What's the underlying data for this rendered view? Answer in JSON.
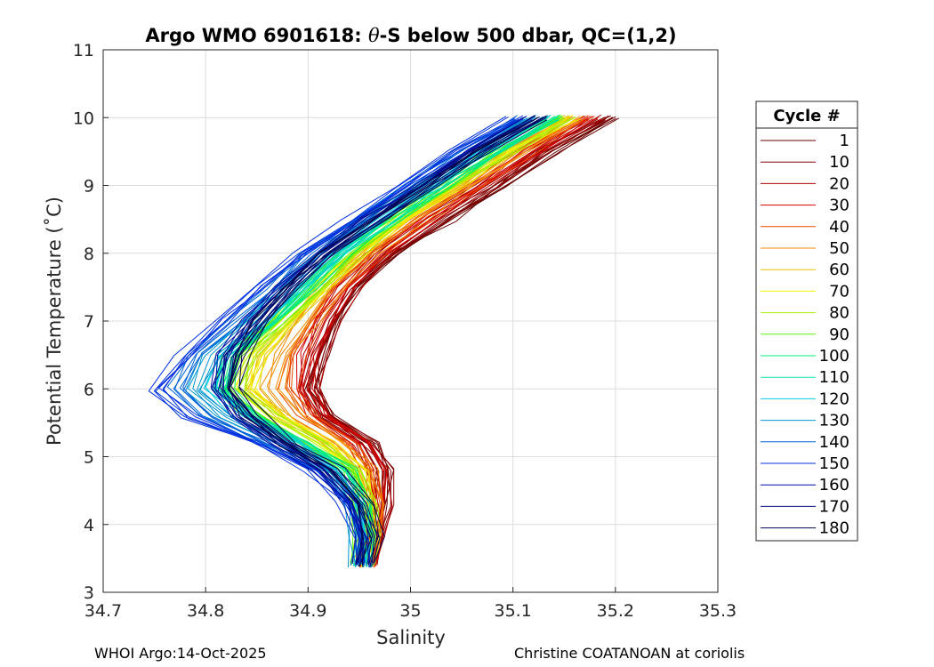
{
  "chart_data": {
    "type": "line",
    "title": "Argo WMO 6901618: θ-S below 500 dbar,  QC=(1,2)",
    "title_prefix": "Argo WMO 6901618: ",
    "title_theta": "θ",
    "title_suffix": "-S below 500 dbar,  QC=(1,2)",
    "xlabel": "Salinity",
    "ylabel": "Potential Temperature (˚C)",
    "xlim": [
      34.7,
      35.3
    ],
    "ylim": [
      3,
      11
    ],
    "xticks": [
      "34.7",
      "34.8",
      "34.9",
      "35",
      "35.1",
      "35.2",
      "35.3"
    ],
    "yticks": [
      "3",
      "4",
      "5",
      "6",
      "7",
      "8",
      "9",
      "10",
      "11"
    ],
    "grid": true,
    "legend_title": "Cycle #",
    "legend_placement": "right",
    "legend": [
      {
        "label": "1",
        "color": "#6b0000"
      },
      {
        "label": "10",
        "color": "#8b0000"
      },
      {
        "label": "20",
        "color": "#b00000"
      },
      {
        "label": "30",
        "color": "#d40000"
      },
      {
        "label": "40",
        "color": "#e84a00"
      },
      {
        "label": "50",
        "color": "#f58a00"
      },
      {
        "label": "60",
        "color": "#e8c200"
      },
      {
        "label": "70",
        "color": "#f2f200"
      },
      {
        "label": "80",
        "color": "#a8f000"
      },
      {
        "label": "90",
        "color": "#5cf000"
      },
      {
        "label": "100",
        "color": "#00f070"
      },
      {
        "label": "110",
        "color": "#00e0b0"
      },
      {
        "label": "120",
        "color": "#00c8e0"
      },
      {
        "label": "130",
        "color": "#0096d0"
      },
      {
        "label": "140",
        "color": "#0064d8"
      },
      {
        "label": "150",
        "color": "#0030e0"
      },
      {
        "label": "160",
        "color": "#0010a0"
      },
      {
        "label": "170",
        "color": "#000a78"
      },
      {
        "label": "180",
        "color": "#00064f"
      }
    ],
    "series_template": {
      "theta": [
        3.4,
        3.8,
        4.3,
        4.8,
        5.2,
        5.6,
        6.0,
        6.5,
        7.0,
        7.5,
        8.0,
        8.5,
        9.0,
        9.5,
        10.0
      ],
      "salinity_by_cycle": [
        {
          "cycle": 1,
          "salinity": [
            34.96,
            34.97,
            34.975,
            34.98,
            34.965,
            34.92,
            34.905,
            34.915,
            34.93,
            34.95,
            34.99,
            35.04,
            35.09,
            35.14,
            35.2
          ]
        },
        {
          "cycle": 10,
          "salinity": [
            34.96,
            34.968,
            34.975,
            34.975,
            34.96,
            34.92,
            34.905,
            34.91,
            34.925,
            34.945,
            34.98,
            35.03,
            35.08,
            35.13,
            35.19
          ]
        },
        {
          "cycle": 20,
          "salinity": [
            34.96,
            34.968,
            34.972,
            34.97,
            34.955,
            34.915,
            34.9,
            34.905,
            34.92,
            34.94,
            34.975,
            35.02,
            35.07,
            35.12,
            35.18
          ]
        },
        {
          "cycle": 30,
          "salinity": [
            34.958,
            34.966,
            34.97,
            34.968,
            34.95,
            34.91,
            34.895,
            34.9,
            34.915,
            34.935,
            34.97,
            35.015,
            35.065,
            35.115,
            35.175
          ]
        },
        {
          "cycle": 40,
          "salinity": [
            34.955,
            34.965,
            34.968,
            34.962,
            34.94,
            34.9,
            34.88,
            34.885,
            34.905,
            34.93,
            34.965,
            35.01,
            35.06,
            35.11,
            35.17
          ]
        },
        {
          "cycle": 50,
          "salinity": [
            34.955,
            34.963,
            34.965,
            34.958,
            34.93,
            34.89,
            34.865,
            34.875,
            34.9,
            34.925,
            34.96,
            35.005,
            35.055,
            35.105,
            35.165
          ]
        },
        {
          "cycle": 60,
          "salinity": [
            34.955,
            34.962,
            34.963,
            34.955,
            34.925,
            34.88,
            34.85,
            34.86,
            34.89,
            34.92,
            34.955,
            35.0,
            35.05,
            35.1,
            35.16
          ]
        },
        {
          "cycle": 70,
          "salinity": [
            34.953,
            34.96,
            34.96,
            34.95,
            34.92,
            34.87,
            34.84,
            34.85,
            34.88,
            34.915,
            34.95,
            34.995,
            35.045,
            35.095,
            35.155
          ]
        },
        {
          "cycle": 80,
          "salinity": [
            34.953,
            34.958,
            34.958,
            34.945,
            34.91,
            34.86,
            34.83,
            34.84,
            34.875,
            34.91,
            34.945,
            34.99,
            35.04,
            35.09,
            35.15
          ]
        },
        {
          "cycle": 90,
          "salinity": [
            34.952,
            34.956,
            34.955,
            34.94,
            34.9,
            34.85,
            34.82,
            34.83,
            34.87,
            34.905,
            34.94,
            34.985,
            35.035,
            35.085,
            35.145
          ]
        },
        {
          "cycle": 100,
          "salinity": [
            34.952,
            34.955,
            34.952,
            34.935,
            34.895,
            34.845,
            34.815,
            34.825,
            34.865,
            34.9,
            34.935,
            34.98,
            35.03,
            35.08,
            35.14
          ]
        },
        {
          "cycle": 110,
          "salinity": [
            34.95,
            34.953,
            34.95,
            34.93,
            34.89,
            34.84,
            34.81,
            34.82,
            34.86,
            34.895,
            34.93,
            34.975,
            35.025,
            35.075,
            35.135
          ]
        },
        {
          "cycle": 120,
          "salinity": [
            34.95,
            34.952,
            34.948,
            34.925,
            34.885,
            34.835,
            34.805,
            34.815,
            34.855,
            34.89,
            34.925,
            34.97,
            35.02,
            35.07,
            35.13
          ]
        },
        {
          "cycle": 130,
          "salinity": [
            34.95,
            34.95,
            34.945,
            34.92,
            34.875,
            34.82,
            34.79,
            34.805,
            34.845,
            34.88,
            34.915,
            34.96,
            35.01,
            35.06,
            35.12
          ]
        },
        {
          "cycle": 140,
          "salinity": [
            34.95,
            34.95,
            34.94,
            34.91,
            34.86,
            34.8,
            34.77,
            34.79,
            34.83,
            34.865,
            34.9,
            34.95,
            35.0,
            35.05,
            35.11
          ]
        },
        {
          "cycle": 150,
          "salinity": [
            34.95,
            34.948,
            34.935,
            34.9,
            34.845,
            34.78,
            34.75,
            34.775,
            34.815,
            34.85,
            34.89,
            34.94,
            34.99,
            35.04,
            35.1
          ]
        },
        {
          "cycle": 160,
          "salinity": [
            34.952,
            34.955,
            34.945,
            34.915,
            34.87,
            34.83,
            34.81,
            34.82,
            34.845,
            34.875,
            34.91,
            34.96,
            35.01,
            35.06,
            35.12
          ]
        },
        {
          "cycle": 170,
          "salinity": [
            34.955,
            34.96,
            34.95,
            34.92,
            34.875,
            34.84,
            34.82,
            34.825,
            34.85,
            34.88,
            34.915,
            34.965,
            35.015,
            35.065,
            35.125
          ]
        },
        {
          "cycle": 180,
          "salinity": [
            34.958,
            34.965,
            34.955,
            34.925,
            34.88,
            34.85,
            34.83,
            34.835,
            34.855,
            34.885,
            34.92,
            34.97,
            35.02,
            35.07,
            35.13
          ]
        }
      ]
    }
  },
  "footer": {
    "left": "WHOI Argo:14-Oct-2025",
    "right": "Christine COATANOAN at coriolis"
  }
}
